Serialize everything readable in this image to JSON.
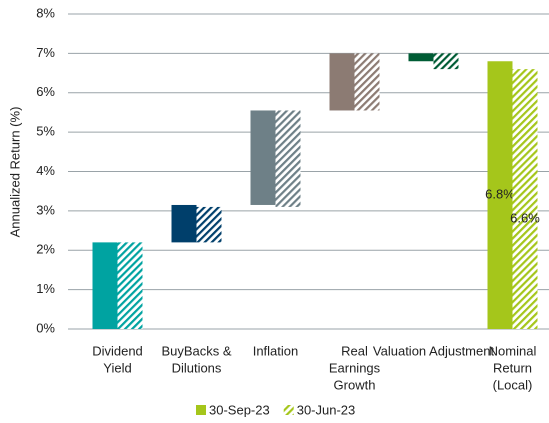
{
  "chart_data": {
    "type": "waterfall",
    "y_label": "Annualized Return (%)",
    "categories": [
      [
        "Dividend",
        "Yield"
      ],
      [
        "BuyBacks &",
        "Dilutions"
      ],
      [
        "Inflation"
      ],
      [
        "Real",
        "Earnings",
        "Growth"
      ],
      [
        "Valuation Adjustment"
      ],
      [
        "Nominal",
        "Return",
        "(Local)"
      ]
    ],
    "colors": [
      "#00a3a1",
      "#003f6b",
      "#6e8087",
      "#8c7b73",
      "#005c35",
      "#a5c61b"
    ],
    "series": [
      {
        "name": "30-Sep-23",
        "color": "#a5c61b",
        "hatched": false,
        "values": [
          2.2,
          0.95,
          2.4,
          1.45,
          -0.2,
          6.8
        ],
        "value_labels": [
          null,
          null,
          null,
          null,
          null,
          "6.8%"
        ]
      },
      {
        "name": "30-Jun-23",
        "color": "#a5c61b",
        "hatched": true,
        "values": [
          2.2,
          0.9,
          2.45,
          1.45,
          -0.4,
          6.6
        ],
        "value_labels": [
          null,
          null,
          null,
          null,
          null,
          "6.6%"
        ]
      }
    ],
    "ylim": [
      0,
      8
    ],
    "yticks": [
      {
        "value": 0,
        "label": "0%"
      },
      {
        "value": 1,
        "label": "1%"
      },
      {
        "value": 2,
        "label": "2%"
      },
      {
        "value": 3,
        "label": "3%"
      },
      {
        "value": 4,
        "label": "4%"
      },
      {
        "value": 5,
        "label": "5%"
      },
      {
        "value": 6,
        "label": "6%"
      },
      {
        "value": 7,
        "label": "7%"
      },
      {
        "value": 8,
        "label": "8%"
      }
    ],
    "grid": true
  }
}
